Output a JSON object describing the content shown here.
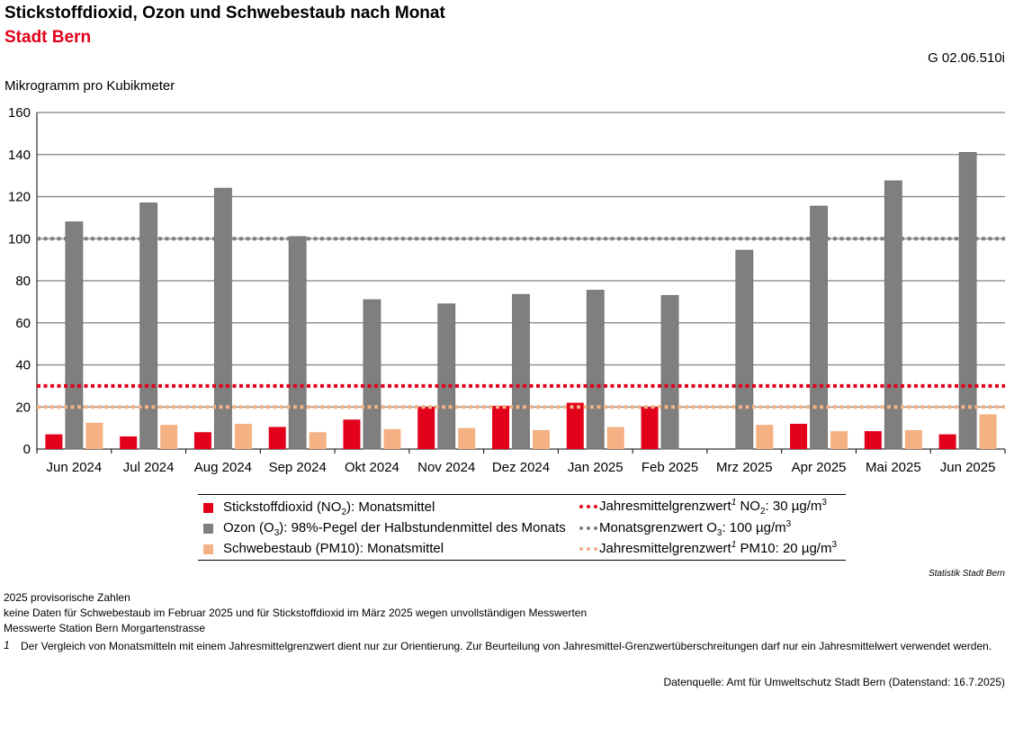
{
  "title": "Stickstoffdioxid, Ozon und Schwebestaub nach Monat",
  "subtitle": "Stadt Bern",
  "code": "G 02.06.510i",
  "unit_label": "Mikrogramm pro Kubikmeter",
  "colors": {
    "no2": "#e2001a",
    "o3": "#7f7f7f",
    "pm10": "#f4b183",
    "title_red": "#e2001a"
  },
  "chart_data": {
    "type": "bar",
    "title": "Stickstoffdioxid, Ozon und Schwebestaub nach Monat",
    "ylabel": "Mikrogramm pro Kubikmeter",
    "ylim": [
      0,
      160
    ],
    "yticks": [
      0,
      20,
      40,
      60,
      80,
      100,
      120,
      140,
      160
    ],
    "grid": true,
    "legend_position": "bottom",
    "categories": [
      "Jun 2024",
      "Jul 2024",
      "Aug 2024",
      "Sep 2024",
      "Okt 2024",
      "Nov 2024",
      "Dez 2024",
      "Jan 2025",
      "Feb 2025",
      "Mrz 2025",
      "Apr 2025",
      "Mai 2025",
      "Jun 2025"
    ],
    "series": [
      {
        "name": "Stickstoffdioxid (NO2): Monatsmittel",
        "values": [
          7,
          6,
          8,
          10.5,
          14,
          20,
          20.5,
          22,
          20,
          null,
          12,
          8.5,
          7
        ]
      },
      {
        "name": "Ozon (O3): 98%-Pegel der Halbstundenmittel des Monats",
        "values": [
          108,
          117,
          124,
          101,
          71,
          69,
          73.5,
          75.5,
          73,
          94.5,
          115.5,
          127.5,
          141
        ]
      },
      {
        "name": "Schwebestaub (PM10): Monatsmittel",
        "values": [
          12.5,
          11.5,
          12,
          8,
          9.5,
          10,
          9,
          10.5,
          null,
          11.5,
          8.5,
          9,
          16.5
        ]
      }
    ],
    "reference_lines": [
      {
        "name": "Jahresmittelgrenzwert NO2: 30 µg/m3",
        "value": 30
      },
      {
        "name": "Monatsgrenzwert O3: 100 µg/m3",
        "value": 100
      },
      {
        "name": "Jahresmittelgrenzwert PM10: 20 µg/m3",
        "value": 20
      }
    ]
  },
  "legend": {
    "no2": {
      "a": "Stickstoffdioxid (NO",
      "sub": "2",
      "b": "): Monatsmittel"
    },
    "o3": {
      "a": "Ozon (O",
      "sub": "3",
      "b": "): 98%-Pegel der Halbstundenmittel des Monats"
    },
    "pm10": {
      "a": "Schwebestaub (PM10): Monatsmittel"
    },
    "ref_no2": {
      "a": "Jahresmittelgrenzwert",
      "sup": "1",
      "b": " NO",
      "sub": "2",
      "c": ": 30 µg/m",
      "sup2": "3"
    },
    "ref_o3": {
      "a": "Monatsgrenzwert O",
      "sub": "3",
      "b": ": 100 µg/m",
      "sup": "3"
    },
    "ref_pm10": {
      "a": "Jahresmittelgrenzwert",
      "sup": "1",
      "b": " PM10: 20 µg/m",
      "sup2": "3"
    }
  },
  "brand": "Statistik Stadt Bern",
  "notes": [
    "2025 provisorische Zahlen",
    "keine Daten für Schwebestaub im Februar 2025 und für Stickstoffdioxid im März 2025 wegen unvollständigen Messwerten",
    "Messwerte Station Bern Morgartenstrasse"
  ],
  "footnote": {
    "mark": "1",
    "text": "Der Vergleich von Monatsmitteln mit einem Jahresmittelgrenzwert dient nur zur Orientierung. Zur Beurteilung von Jahresmittel-Grenzwertüberschreitungen darf nur ein Jahresmittelwert verwendet werden."
  },
  "datasource": "Datenquelle: Amt für Umweltschutz Stadt Bern (Datenstand: 16.7.2025)"
}
